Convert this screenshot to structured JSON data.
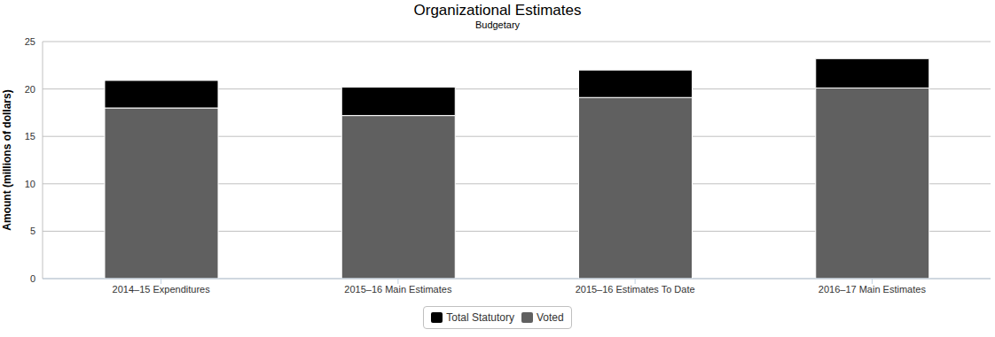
{
  "chart_data": {
    "type": "bar",
    "title": "Organizational Estimates",
    "subtitle": "Budgetary",
    "y_label": "Amount (millions of dollars)",
    "categories": [
      "2014–15 Expenditures",
      "2015–16 Main Estimates",
      "2015–16 Estimates To Date",
      "2016–17 Main Estimates"
    ],
    "series": [
      {
        "name": "Total Statutory",
        "color": "#000000",
        "values": [
          2.9,
          3.0,
          2.9,
          3.1
        ]
      },
      {
        "name": "Voted",
        "color": "#606060",
        "values": [
          18.0,
          17.2,
          19.1,
          20.1
        ]
      }
    ],
    "stacked": true,
    "ylim": [
      0,
      25
    ],
    "yticks": [
      0,
      5,
      10,
      15,
      20,
      25
    ],
    "grid": true,
    "legend": "bottom"
  }
}
